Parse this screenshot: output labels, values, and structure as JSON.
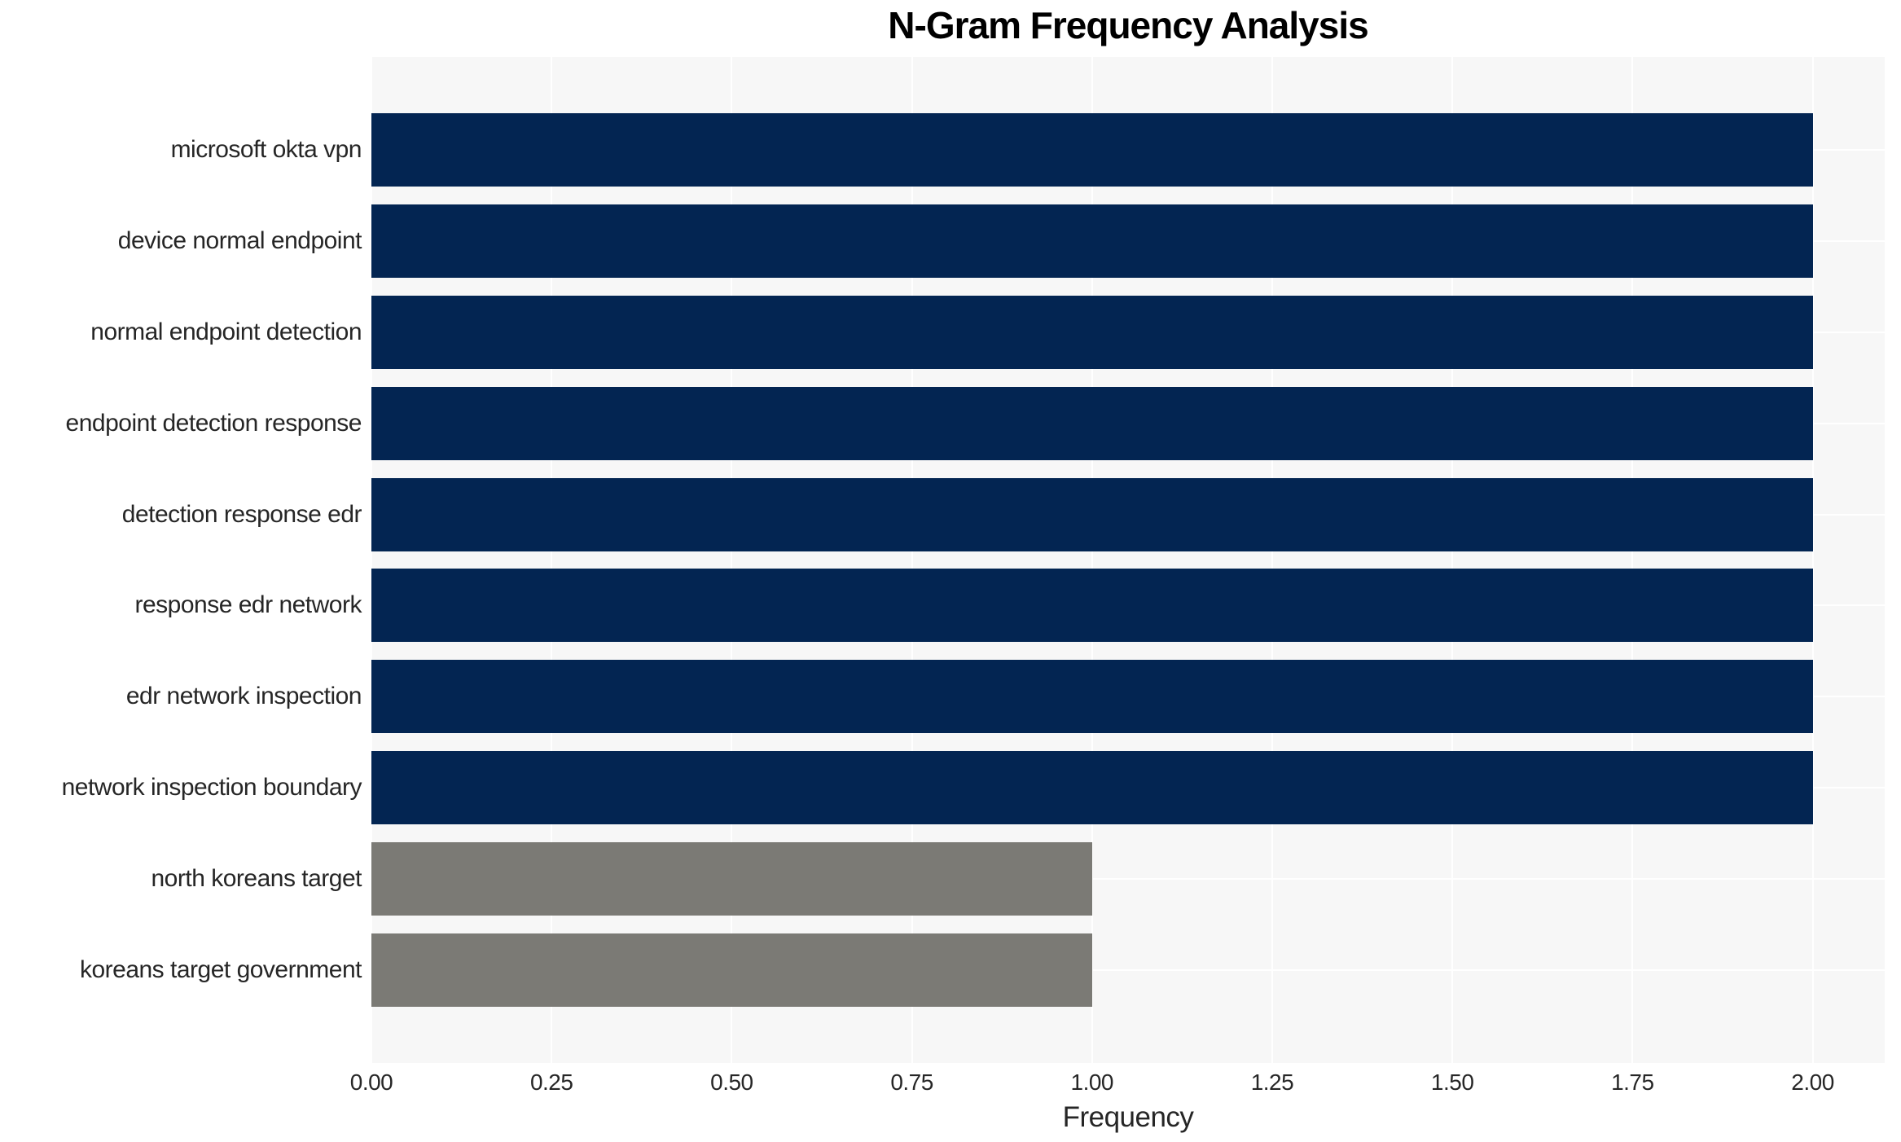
{
  "chart_data": {
    "type": "bar",
    "orientation": "horizontal",
    "title": "N-Gram Frequency Analysis",
    "xlabel": "Frequency",
    "ylabel": "",
    "categories": [
      "microsoft okta vpn",
      "device normal endpoint",
      "normal endpoint detection",
      "endpoint detection response",
      "detection response edr",
      "response edr network",
      "edr network inspection",
      "network inspection boundary",
      "north koreans target",
      "koreans target government"
    ],
    "values": [
      2,
      2,
      2,
      2,
      2,
      2,
      2,
      2,
      1,
      1
    ],
    "bar_colors": [
      "#032552",
      "#032552",
      "#032552",
      "#032552",
      "#032552",
      "#032552",
      "#032552",
      "#032552",
      "#7b7a75",
      "#7b7a75"
    ],
    "xlim": [
      0,
      2.1
    ],
    "xticks": {
      "values": [
        0.0,
        0.25,
        0.5,
        0.75,
        1.0,
        1.25,
        1.5,
        1.75,
        2.0
      ],
      "labels": [
        "0.00",
        "0.25",
        "0.50",
        "0.75",
        "1.00",
        "1.25",
        "1.50",
        "1.75",
        "2.00"
      ]
    },
    "legend": "none",
    "grid": {
      "visible": true,
      "color": "#ffffff",
      "background": "#f7f7f7"
    },
    "colors": {
      "bar_primary": "#032552",
      "bar_secondary": "#7b7a75",
      "plot_background": "#f7f7f7",
      "gridline": "#ffffff",
      "text": "#262626"
    }
  }
}
